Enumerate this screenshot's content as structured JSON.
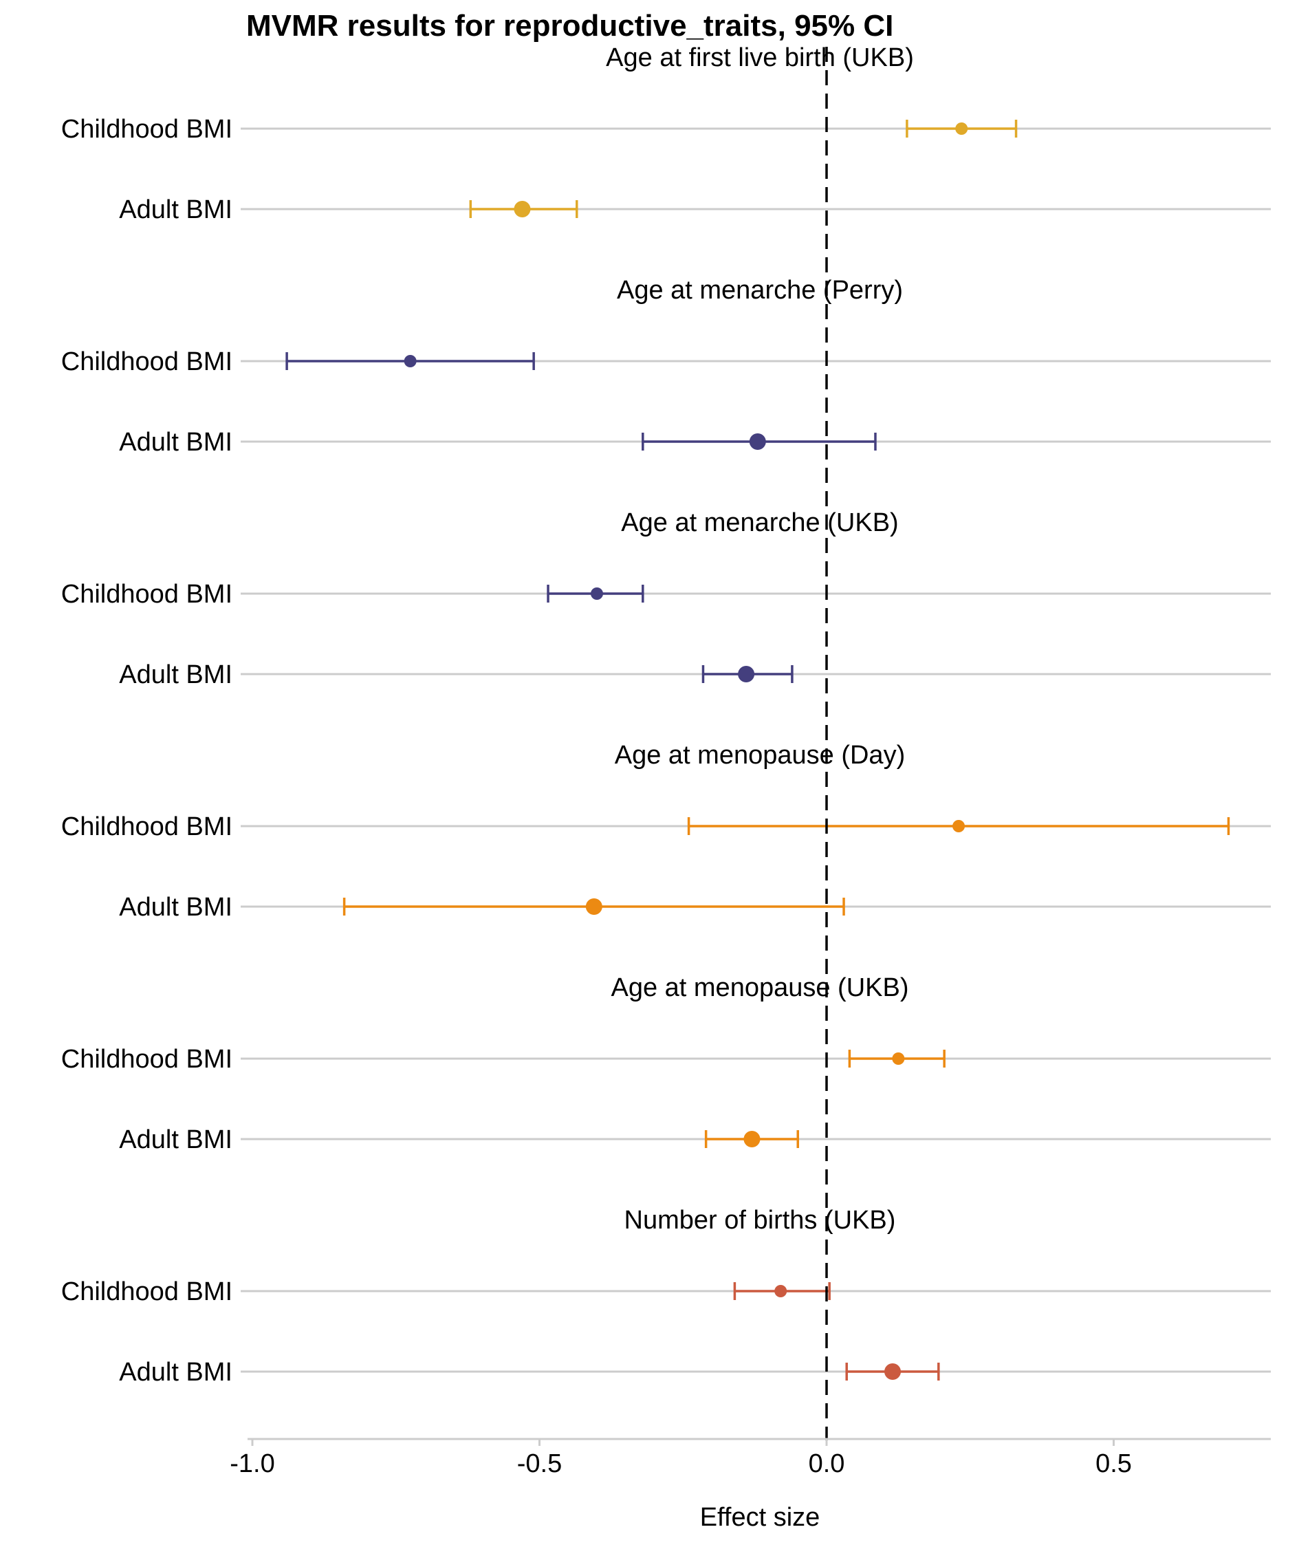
{
  "chart_data": {
    "type": "forest",
    "title": "MVMR results for reproductive_traits, 95% CI",
    "xlabel": "Effect size",
    "xlim": [
      -1.03,
      0.78
    ],
    "xticks": [
      -1.0,
      -0.5,
      0.0,
      0.5
    ],
    "xtick_labels": [
      "-1.0",
      "-0.5",
      "0.0",
      "0.5"
    ],
    "reference_line": 0.0,
    "grid": "horizontal",
    "panels": [
      {
        "title": "Age at first live birth (UKB)",
        "color": "#E0A929",
        "rows": [
          {
            "label": "Childhood BMI",
            "estimate": 0.235,
            "lower": 0.14,
            "upper": 0.33
          },
          {
            "label": "Adult BMI",
            "estimate": -0.53,
            "lower": -0.62,
            "upper": -0.435
          }
        ]
      },
      {
        "title": "Age at menarche (Perry)",
        "color": "#443F7E",
        "rows": [
          {
            "label": "Childhood BMI",
            "estimate": -0.725,
            "lower": -0.94,
            "upper": -0.51
          },
          {
            "label": "Adult BMI",
            "estimate": -0.12,
            "lower": -0.32,
            "upper": 0.085
          }
        ]
      },
      {
        "title": "Age at menarche (UKB)",
        "color": "#443F7E",
        "rows": [
          {
            "label": "Childhood BMI",
            "estimate": -0.4,
            "lower": -0.485,
            "upper": -0.32
          },
          {
            "label": "Adult BMI",
            "estimate": -0.14,
            "lower": -0.215,
            "upper": -0.06
          }
        ]
      },
      {
        "title": "Age at menopause (Day)",
        "color": "#EC8A12",
        "rows": [
          {
            "label": "Childhood BMI",
            "estimate": 0.23,
            "lower": -0.24,
            "upper": 0.7
          },
          {
            "label": "Adult BMI",
            "estimate": -0.405,
            "lower": -0.84,
            "upper": 0.03
          }
        ]
      },
      {
        "title": "Age at menopause (UKB)",
        "color": "#EC8A12",
        "rows": [
          {
            "label": "Childhood BMI",
            "estimate": 0.125,
            "lower": 0.04,
            "upper": 0.205
          },
          {
            "label": "Adult BMI",
            "estimate": -0.13,
            "lower": -0.21,
            "upper": -0.05
          }
        ]
      },
      {
        "title": "Number of births (UKB)",
        "color": "#CB5A3F",
        "rows": [
          {
            "label": "Childhood BMI",
            "estimate": -0.08,
            "lower": -0.16,
            "upper": 0.005
          },
          {
            "label": "Adult BMI",
            "estimate": 0.115,
            "lower": 0.035,
            "upper": 0.195
          }
        ]
      }
    ]
  }
}
